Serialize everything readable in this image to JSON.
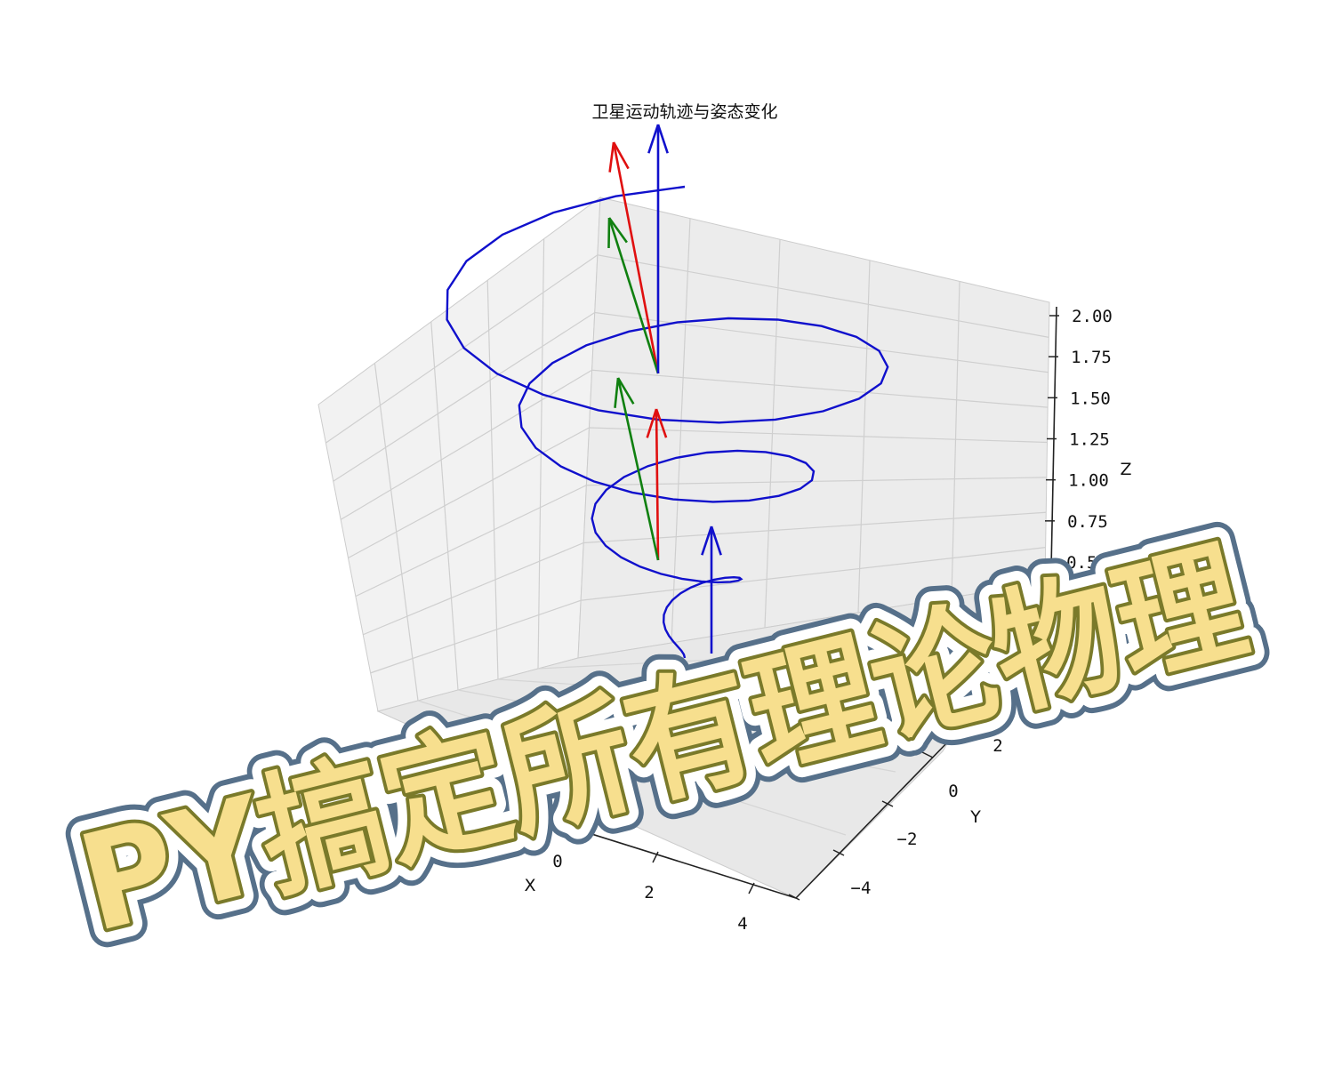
{
  "chart_data": {
    "type": "line3d",
    "title": "卫星运动轨迹与姿态变化",
    "xlabel": "X",
    "ylabel": "Y",
    "zlabel": "Z",
    "x_ticks": [
      "0",
      "2",
      "4"
    ],
    "y_ticks": [
      "2",
      "0",
      "−2",
      "−4"
    ],
    "z_ticks": [
      "2.00",
      "1.75",
      "1.50",
      "1.25",
      "1.00",
      "0.75",
      "0.50"
    ],
    "grid": true,
    "series": [
      {
        "kind": "spiral-trajectory",
        "color": "#1010cc",
        "turns": 3.5,
        "radius_range": [
          0,
          5
        ],
        "z_range": [
          0,
          2
        ]
      }
    ],
    "attitude_axes": [
      {
        "color": "#e01010"
      },
      {
        "color": "#108010"
      },
      {
        "color": "#1010cc"
      }
    ]
  },
  "banner": {
    "text": "PY搞定所有理论物理",
    "fill_color": "#f7df8e",
    "stroke_color": "#7a7a2a",
    "halo_color": "#ffffff",
    "outline_color": "#56708a"
  }
}
